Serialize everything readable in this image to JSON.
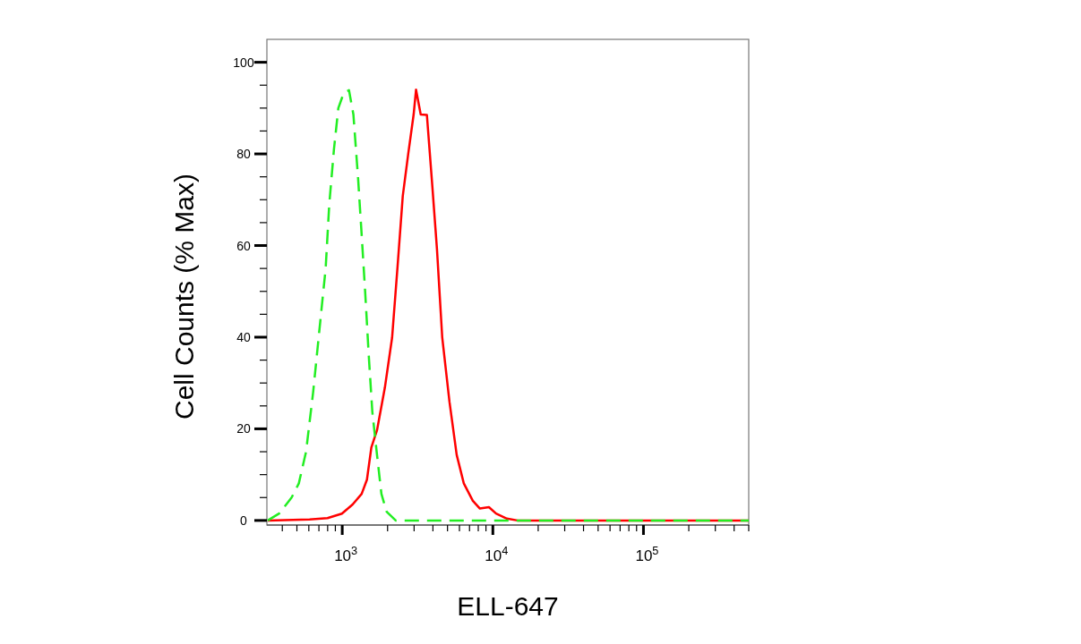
{
  "chart_data": {
    "type": "line",
    "xlabel": "ELL-647",
    "ylabel": "Cell Counts (% Max)",
    "log": "x",
    "grid": false,
    "xlim": [
      316,
      500000
    ],
    "ylim": [
      -1,
      105
    ],
    "xticks": [
      {
        "value": 400,
        "label": null
      },
      {
        "value": 500,
        "label": null
      },
      {
        "value": 600,
        "label": null
      },
      {
        "value": 700,
        "label": null
      },
      {
        "value": 800,
        "label": null
      },
      {
        "value": 900,
        "label": null
      },
      {
        "value": 1000,
        "label": "10$^{3}$"
      },
      {
        "value": 2000,
        "label": null
      },
      {
        "value": 3000,
        "label": null
      },
      {
        "value": 4000,
        "label": null
      },
      {
        "value": 5000,
        "label": null
      },
      {
        "value": 6000,
        "label": null
      },
      {
        "value": 7000,
        "label": null
      },
      {
        "value": 8000,
        "label": null
      },
      {
        "value": 9000,
        "label": null
      },
      {
        "value": 10000,
        "label": "10$^{4}$"
      },
      {
        "value": 20000,
        "label": null
      },
      {
        "value": 30000,
        "label": null
      },
      {
        "value": 40000,
        "label": null
      },
      {
        "value": 50000,
        "label": null
      },
      {
        "value": 60000,
        "label": null
      },
      {
        "value": 70000,
        "label": null
      },
      {
        "value": 80000,
        "label": null
      },
      {
        "value": 90000,
        "label": null
      },
      {
        "value": 100000,
        "label": "10$^{5}$"
      },
      {
        "value": 200000,
        "label": null
      },
      {
        "value": 300000,
        "label": null
      },
      {
        "value": 400000,
        "label": null
      },
      {
        "value": 500000,
        "label": null
      }
    ],
    "yticks": [
      0,
      {
        "value": 5,
        "label": null
      },
      {
        "value": 10,
        "label": null
      },
      {
        "value": 15,
        "label": null
      },
      20,
      {
        "value": 25,
        "label": null
      },
      {
        "value": 30,
        "label": null
      },
      {
        "value": 35,
        "label": null
      },
      40,
      {
        "value": 45,
        "label": null
      },
      {
        "value": 50,
        "label": null
      },
      {
        "value": 55,
        "label": null
      },
      60,
      {
        "value": 65,
        "label": null
      },
      {
        "value": 70,
        "label": null
      },
      {
        "value": 75,
        "label": null
      },
      80,
      {
        "value": 85,
        "label": null
      },
      {
        "value": 90,
        "label": null
      },
      {
        "value": 95,
        "label": null
      },
      100
    ],
    "series": [
      {
        "color": "#ff0000",
        "line_style": "solid",
        "x": [
          320,
          607,
          798,
          995,
          1172,
          1346,
          1459,
          1560,
          1702,
          1919,
          2143,
          2328,
          2523,
          2742,
          2979,
          3090,
          3319,
          3648,
          3963,
          4256,
          4613,
          5152,
          5754,
          6412,
          7362,
          8204,
          9419,
          10500,
          12390,
          14590,
          100000,
          500000
        ],
        "values": [
          0,
          0.2,
          0.5,
          1.5,
          3.5,
          5.8,
          8.9,
          15.9,
          19.7,
          29,
          39.9,
          55.3,
          70.8,
          80,
          88.6,
          94,
          88.6,
          88.5,
          73,
          59.2,
          39.9,
          25.9,
          14.3,
          8.1,
          4.3,
          2.6,
          2.9,
          1.5,
          0.4,
          0,
          0,
          0
        ]
      },
      {
        "color": "#22ee22",
        "line_style": "dashed",
        "x": [
          320,
          381,
          461,
          515,
          575,
          641,
          716,
          776,
          820,
          881,
          942,
          1023,
          1109,
          1186,
          1274,
          1346,
          1419,
          1500,
          1585,
          1702,
          1820,
          1972,
          2265,
          5000,
          20000,
          100000,
          500000
        ],
        "values": [
          0,
          1.5,
          5,
          8.1,
          15,
          28,
          43.7,
          55,
          69,
          81,
          90,
          93.3,
          93.9,
          88.6,
          74.7,
          62.3,
          50,
          36,
          23.6,
          14.3,
          5.8,
          1.9,
          0,
          0,
          0,
          0,
          0
        ]
      }
    ]
  }
}
